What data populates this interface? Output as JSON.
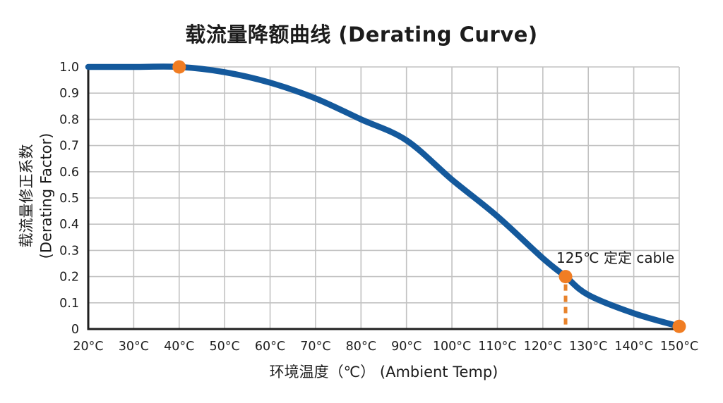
{
  "title": "载流量降额曲线 (Derating Curve)",
  "colors": {
    "background": "#ffffff",
    "curve": "#14599c",
    "marker": "#f07d23",
    "dashed": "#e8832c",
    "grid": "#c2c2c2",
    "axis": "#1f1f1f",
    "text": "#1c1c1c"
  },
  "ylabel_lines": {
    "line1": "载流量修正系数",
    "line2": "(Derating Factor)"
  },
  "chart_data": {
    "type": "line",
    "title": "载流量降额曲线 (Derating Curve)",
    "xlabel": "环境温度（℃） (Ambient Temp)",
    "ylabel": "载流量修正系数 (Derating Factor)",
    "xlim": [
      20,
      150
    ],
    "ylim": [
      0,
      1.0
    ],
    "grid": true,
    "x_tick_values": [
      20,
      30,
      40,
      50,
      60,
      70,
      80,
      90,
      100,
      110,
      120,
      130,
      140,
      150
    ],
    "x_ticks": [
      "20°C",
      "30°C",
      "40°C",
      "50°C",
      "60°C",
      "70°C",
      "80°C",
      "90°C",
      "100°C",
      "110°C",
      "120°C",
      "130°C",
      "140°C",
      "150°C"
    ],
    "y_tick_values": [
      1.0,
      0.9,
      0.8,
      0.7,
      0.6,
      0.5,
      0.4,
      0.3,
      0.2,
      0.1,
      0
    ],
    "y_ticks": [
      "1.0",
      "0.9",
      "0.8",
      "0.7",
      "0.6",
      "0.5",
      "0.4",
      "0.3",
      "0.2",
      "0.1",
      "0"
    ],
    "series": [
      {
        "name": "derating-curve",
        "x": [
          20,
          30,
          40,
          50,
          60,
          70,
          80,
          90,
          100,
          110,
          120,
          125,
          130,
          140,
          150
        ],
        "y": [
          1.0,
          1.0,
          1.0,
          0.98,
          0.94,
          0.88,
          0.8,
          0.72,
          0.57,
          0.43,
          0.27,
          0.2,
          0.13,
          0.06,
          0.01
        ]
      }
    ],
    "markers": [
      {
        "x": 40,
        "y": 1.0
      },
      {
        "x": 125,
        "y": 0.2
      },
      {
        "x": 150,
        "y": 0.01
      }
    ],
    "annotation": {
      "text": "125℃ 定定 cable",
      "x": 125,
      "y": 0.2
    },
    "dashed_line": {
      "x": 125,
      "y_from": 0,
      "y_to": 0.2
    },
    "legend": null
  }
}
